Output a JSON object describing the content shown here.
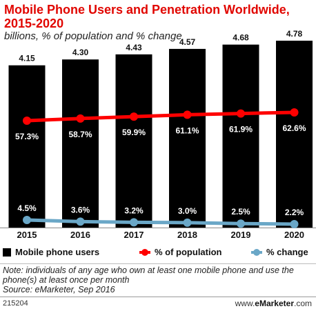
{
  "header": {
    "title": "Mobile Phone Users and Penetration Worldwide, 2015-2020",
    "subtitle": "billions, % of population and % change"
  },
  "chart_data": {
    "type": "bar",
    "categories": [
      "2015",
      "2016",
      "2017",
      "2018",
      "2019",
      "2020"
    ],
    "series": [
      {
        "name": "Mobile phone users",
        "type": "bar",
        "values": [
          4.15,
          4.3,
          4.43,
          4.57,
          4.68,
          4.78
        ],
        "labels": [
          "4.15",
          "4.30",
          "4.43",
          "4.57",
          "4.68",
          "4.78"
        ],
        "color": "#000000"
      },
      {
        "name": "% of population",
        "type": "line",
        "values": [
          57.3,
          58.7,
          59.9,
          61.1,
          61.9,
          62.6
        ],
        "labels": [
          "57.3%",
          "58.7%",
          "59.9%",
          "61.1%",
          "61.9%",
          "62.6%"
        ],
        "color": "#ff0000"
      },
      {
        "name": "% change",
        "type": "line",
        "values": [
          4.5,
          3.6,
          3.2,
          3.0,
          2.5,
          2.2
        ],
        "labels": [
          "4.5%",
          "3.6%",
          "3.2%",
          "3.0%",
          "2.5%",
          "2.2%"
        ],
        "color": "#6aa7c7"
      }
    ],
    "legend_position": "bottom",
    "grid": false
  },
  "legend": {
    "users": "Mobile phone users",
    "population": "% of population",
    "change": "% change"
  },
  "note": "Note: individuals of any age who own at least one mobile phone and use the phone(s) at least once per month",
  "source": "Source: eMarketer, Sep 2016",
  "footer": {
    "id": "215204",
    "site_prefix": "www.",
    "site_brand": "eMarketer",
    "site_suffix": ".com"
  }
}
